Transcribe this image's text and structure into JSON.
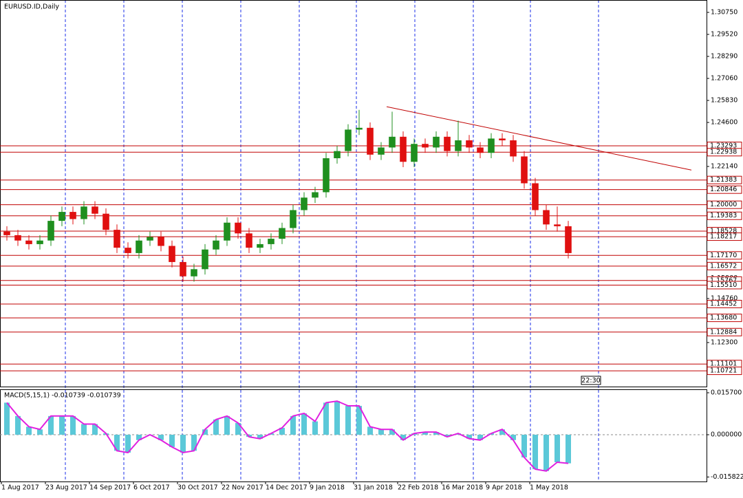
{
  "chart_data": {
    "type": "candlestick",
    "title": "EURUSD.ID,Daily",
    "time_label": "22:30",
    "x": [
      2,
      6,
      10,
      14,
      18,
      22,
      26,
      30,
      34,
      38,
      42,
      46,
      50,
      54,
      58,
      62,
      66,
      70,
      74,
      78,
      82,
      86,
      90,
      94,
      98,
      102,
      106,
      110,
      114,
      118,
      122,
      126,
      130,
      134,
      138,
      142,
      146,
      150,
      154,
      158,
      162,
      166,
      170,
      174,
      178,
      182,
      186,
      190,
      194,
      198,
      202,
      206
    ],
    "open": [
      1.185,
      1.183,
      1.18,
      1.178,
      1.18,
      1.191,
      1.196,
      1.192,
      1.199,
      1.195,
      1.186,
      1.176,
      1.173,
      1.18,
      1.182,
      1.177,
      1.168,
      1.16,
      1.164,
      1.175,
      1.18,
      1.19,
      1.184,
      1.176,
      1.178,
      1.181,
      1.187,
      1.197,
      1.204,
      1.207,
      1.226,
      1.23,
      1.242,
      1.243,
      1.228,
      1.232,
      1.238,
      1.224,
      1.234,
      1.232,
      1.238,
      1.23,
      1.236,
      1.232,
      1.229,
      1.237,
      1.236,
      1.227,
      1.212,
      1.197,
      1.189,
      1.188
    ],
    "high": [
      1.188,
      1.186,
      1.183,
      1.183,
      1.194,
      1.199,
      1.199,
      1.202,
      1.202,
      1.198,
      1.189,
      1.179,
      1.183,
      1.185,
      1.185,
      1.18,
      1.171,
      1.167,
      1.178,
      1.183,
      1.193,
      1.193,
      1.187,
      1.181,
      1.184,
      1.19,
      1.2,
      1.207,
      1.21,
      1.229,
      1.233,
      1.245,
      1.253,
      1.246,
      1.235,
      1.252,
      1.241,
      1.237,
      1.237,
      1.241,
      1.241,
      1.247,
      1.239,
      1.235,
      1.24,
      1.24,
      1.239,
      1.23,
      1.215,
      1.2,
      1.199,
      1.191
    ],
    "low": [
      1.18,
      1.177,
      1.175,
      1.175,
      1.177,
      1.188,
      1.189,
      1.189,
      1.192,
      1.183,
      1.173,
      1.17,
      1.17,
      1.177,
      1.174,
      1.165,
      1.157,
      1.157,
      1.161,
      1.172,
      1.177,
      1.181,
      1.173,
      1.173,
      1.175,
      1.178,
      1.184,
      1.194,
      1.201,
      1.204,
      1.223,
      1.227,
      1.239,
      1.225,
      1.225,
      1.229,
      1.221,
      1.221,
      1.229,
      1.229,
      1.227,
      1.227,
      1.229,
      1.226,
      1.226,
      1.233,
      1.224,
      1.209,
      1.194,
      1.186,
      1.185,
      1.17
    ],
    "close": [
      1.183,
      1.18,
      1.178,
      1.18,
      1.191,
      1.196,
      1.192,
      1.199,
      1.195,
      1.186,
      1.176,
      1.173,
      1.18,
      1.182,
      1.177,
      1.168,
      1.16,
      1.164,
      1.175,
      1.18,
      1.19,
      1.184,
      1.176,
      1.178,
      1.181,
      1.187,
      1.197,
      1.204,
      1.207,
      1.226,
      1.23,
      1.242,
      1.243,
      1.228,
      1.232,
      1.238,
      1.224,
      1.234,
      1.232,
      1.238,
      1.23,
      1.236,
      1.232,
      1.229,
      1.237,
      1.236,
      1.227,
      1.212,
      1.197,
      1.189,
      1.188,
      1.173
    ],
    "up_color": "#1f8f1f",
    "down_color": "#e01010",
    "xlim": [
      -0.5,
      256.25
    ],
    "ylim": [
      1.0984,
      1.31442
    ],
    "xticks": [
      {
        "value": 0,
        "label": "1 Aug 2017"
      },
      {
        "value": 16,
        "label": "23 Aug 2017"
      },
      {
        "value": 32,
        "label": "14 Sep 2017"
      },
      {
        "value": 48,
        "label": "6 Oct 2017"
      },
      {
        "value": 64,
        "label": "30 Oct 2017"
      },
      {
        "value": 80,
        "label": "22 Nov 2017"
      },
      {
        "value": 96,
        "label": "14 Dec 2017"
      },
      {
        "value": 112,
        "label": "9 Jan 2018"
      },
      {
        "value": 128,
        "label": "31 Jan 2018"
      },
      {
        "value": 144,
        "label": "22 Feb 2018"
      },
      {
        "value": 160,
        "label": "16 Mar 2018"
      },
      {
        "value": 176,
        "label": "9 Apr 2018"
      },
      {
        "value": 192,
        "label": "1 May 2018"
      }
    ],
    "yticks": [
      {
        "value": 1.3075,
        "label": "1.30750"
      },
      {
        "value": 1.2952,
        "label": "1.29520"
      },
      {
        "value": 1.2829,
        "label": "1.28290"
      },
      {
        "value": 1.2706,
        "label": "1.27060"
      },
      {
        "value": 1.2583,
        "label": "1.25830"
      },
      {
        "value": 1.246,
        "label": "1.24600"
      },
      {
        "value": 1.2214,
        "label": "1.22140"
      },
      {
        "value": 1.159,
        "label": "1.15900"
      },
      {
        "value": 1.1476,
        "label": "1.14760"
      },
      {
        "value": 1.123,
        "label": "1.12300"
      }
    ],
    "level_color": "#c00000",
    "levels": [
      {
        "value": 1.23293,
        "label": "1.23293"
      },
      {
        "value": 1.22938,
        "label": "1.22938"
      },
      {
        "value": 1.21383,
        "label": "1.21383"
      },
      {
        "value": 1.20846,
        "label": "1.20846"
      },
      {
        "value": 1.2,
        "label": "1.20000"
      },
      {
        "value": 1.19383,
        "label": "1.19383"
      },
      {
        "value": 1.18528,
        "label": "1.18528"
      },
      {
        "value": 1.18217,
        "label": "1.18217"
      },
      {
        "value": 1.1717,
        "label": "1.17170"
      },
      {
        "value": 1.16572,
        "label": "1.16572"
      },
      {
        "value": 1.15767,
        "label": "1.15767"
      },
      {
        "value": 1.1551,
        "label": "1.15510"
      },
      {
        "value": 1.14452,
        "label": "1.14452"
      },
      {
        "value": 1.1368,
        "label": "1.13680"
      },
      {
        "value": 1.12884,
        "label": "1.12884"
      },
      {
        "value": 1.11101,
        "label": "1.11101"
      },
      {
        "value": 1.10721,
        "label": "1.10721"
      }
    ],
    "trendline": {
      "x": [
        140,
        250.75
      ],
      "values": [
        1.2548,
        1.2194
      ]
    },
    "indicator": {
      "title": "MACD(5,15,1) -0.010739 -0.010739",
      "values": [
        0.012,
        0.007,
        0.003,
        0.002,
        0.007,
        0.007,
        0.007,
        0.004,
        0.004,
        0.0005,
        -0.006,
        -0.0067,
        -0.002,
        0,
        -0.002,
        -0.0046,
        -0.0067,
        -0.006,
        0.002,
        0.0057,
        0.007,
        0.0044,
        -0.0008,
        -0.0015,
        0.0005,
        0.0026,
        0.007,
        0.008,
        0.005,
        0.012,
        0.0126,
        0.0108,
        0.0108,
        0.003,
        0.002,
        0.002,
        -0.002,
        0.0005,
        0.001,
        0.001,
        -0.0008,
        0.0005,
        -0.0015,
        -0.002,
        0.0005,
        0.002,
        -0.002,
        -0.0085,
        -0.0129,
        -0.0136,
        -0.0103,
        -0.0107
      ],
      "bar_color": "#5bc8d8",
      "line_color": "#e020e0",
      "ylim": [
        -0.0175,
        0.01699
      ],
      "yticks": [
        {
          "value": 0.0157,
          "label": "0.015700"
        },
        {
          "value": 0,
          "label": "0.000000"
        },
        {
          "value": -0.015822,
          "label": "-0.015822"
        }
      ]
    }
  }
}
